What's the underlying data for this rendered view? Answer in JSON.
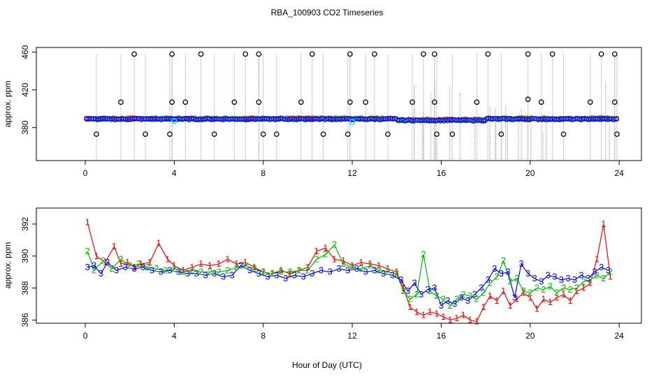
{
  "title": "RBA_100903  CO2 Timeseries",
  "xlabel": "Hour of Day (UTC)",
  "colors": {
    "s1": "#ff0000",
    "s2": "#00bb00",
    "s3": "#0000ff",
    "spike": "#000000",
    "cyan": "#00e5ee",
    "grid": "#999999"
  },
  "chart_data": [
    {
      "type": "scatter",
      "name": "raw-timeseries",
      "ylabel": "approx. ppm",
      "xlim": [
        -2.2,
        25
      ],
      "ylim": [
        345,
        465
      ],
      "xticks": [
        0,
        4,
        8,
        12,
        16,
        20,
        24
      ],
      "yticks": [
        380,
        420,
        460
      ],
      "baseline_ppm": 389,
      "spike_high_ppm": 458,
      "spike_mid_ppm": 407,
      "spike_low_ppm": 373,
      "spikes_high_hours": [
        2.2,
        3.9,
        5.2,
        7.2,
        7.8,
        10.2,
        11.9,
        13.0,
        15.2,
        15.7,
        18.1,
        19.9,
        21.0,
        23.2,
        23.8
      ],
      "spikes_mid_hours": [
        1.6,
        3.9,
        4.5,
        6.7,
        7.8,
        9.7,
        11.9,
        12.6,
        14.7,
        15.7,
        17.6,
        20.5,
        22.7,
        23.8
      ],
      "spikes_low_hours": [
        0.5,
        2.7,
        3.8,
        5.8,
        8.0,
        8.6,
        10.7,
        11.8,
        13.6,
        15.8,
        16.5,
        18.7,
        21.5,
        23.9
      ],
      "cyan_points": [
        {
          "x": 4.0,
          "y": 387
        },
        {
          "x": 12.0,
          "y": 386
        }
      ]
    },
    {
      "type": "line",
      "name": "smoothed-timeseries",
      "ylabel": "approx. ppm",
      "xlim": [
        -2.2,
        25
      ],
      "ylim": [
        385.8,
        393.0
      ],
      "xticks": [
        0,
        4,
        8,
        12,
        16,
        20,
        24
      ],
      "yticks": [
        386,
        388,
        390,
        392
      ],
      "series": [
        {
          "name": "1",
          "x": [
            0.1,
            0.5,
            0.9,
            1.3,
            1.6,
            1.9,
            2.2,
            2.5,
            2.9,
            3.3,
            3.7,
            4.0,
            4.4,
            4.8,
            5.2,
            5.6,
            6.0,
            6.4,
            6.8,
            7.2,
            7.6,
            8.0,
            8.4,
            8.8,
            9.2,
            9.6,
            10.0,
            10.4,
            10.8,
            11.2,
            11.6,
            12.0,
            12.4,
            12.8,
            13.2,
            13.6,
            14.0,
            14.3,
            14.6,
            14.9,
            15.2,
            15.5,
            15.8,
            16.1,
            16.4,
            16.7,
            17.0,
            17.3,
            17.6,
            17.9,
            18.2,
            18.5,
            18.8,
            19.1,
            19.4,
            19.7,
            20.0,
            20.3,
            20.6,
            20.9,
            21.2,
            21.5,
            21.8,
            22.1,
            22.4,
            22.7,
            23.0,
            23.3,
            23.6
          ],
          "y": [
            392.1,
            390.0,
            389.6,
            390.6,
            389.5,
            389.6,
            389.3,
            389.5,
            389.6,
            390.8,
            389.8,
            389.4,
            389.1,
            389.3,
            389.5,
            389.4,
            389.5,
            389.8,
            389.5,
            389.6,
            389.3,
            389.0,
            388.9,
            389.1,
            388.9,
            389.1,
            389.3,
            390.3,
            390.5,
            389.8,
            389.7,
            389.4,
            389.6,
            389.5,
            389.4,
            389.2,
            389.0,
            388.0,
            386.8,
            386.5,
            386.3,
            386.5,
            386.4,
            386.2,
            386.0,
            386.1,
            386.3,
            386.0,
            385.9,
            386.8,
            387.5,
            387.2,
            387.8,
            386.9,
            387.3,
            387.7,
            387.4,
            386.7,
            387.3,
            387.1,
            387.4,
            387.6,
            387.2,
            387.8,
            388.0,
            388.3,
            389.8,
            392.0,
            388.7
          ]
        },
        {
          "name": "2",
          "x": [
            0.1,
            0.4,
            0.8,
            1.2,
            1.6,
            2.0,
            2.4,
            2.8,
            3.2,
            3.6,
            4.0,
            4.4,
            4.8,
            5.2,
            5.6,
            6.0,
            6.4,
            6.8,
            7.2,
            7.6,
            8.0,
            8.4,
            8.8,
            9.2,
            9.6,
            10.0,
            10.4,
            10.8,
            11.2,
            11.6,
            12.0,
            12.4,
            12.8,
            13.2,
            13.6,
            14.0,
            14.3,
            14.6,
            14.9,
            15.2,
            15.5,
            15.8,
            16.1,
            16.4,
            16.7,
            17.0,
            17.3,
            17.6,
            17.9,
            18.2,
            18.5,
            18.8,
            19.1,
            19.4,
            19.7,
            20.0,
            20.3,
            20.6,
            20.9,
            21.2,
            21.5,
            21.8,
            22.1,
            22.4,
            22.7,
            23.0,
            23.3,
            23.6
          ],
          "y": [
            390.3,
            389.1,
            389.7,
            389.2,
            389.8,
            389.4,
            389.5,
            389.3,
            389.2,
            389.1,
            389.2,
            389.0,
            389.1,
            389.0,
            389.0,
            389.0,
            389.1,
            389.3,
            389.4,
            389.2,
            389.0,
            388.9,
            389.0,
            389.0,
            389.1,
            389.1,
            389.8,
            390.1,
            390.7,
            389.5,
            389.3,
            389.2,
            389.4,
            389.1,
            389.0,
            388.9,
            387.8,
            387.3,
            387.6,
            390.1,
            387.8,
            387.5,
            387.3,
            386.9,
            387.3,
            387.6,
            387.5,
            387.3,
            387.7,
            388.3,
            388.7,
            389.7,
            388.4,
            388.6,
            387.8,
            387.7,
            388.0,
            387.9,
            388.1,
            387.7,
            388.0,
            387.9,
            388.0,
            388.4,
            388.5,
            388.8,
            388.6,
            389.0
          ]
        },
        {
          "name": "3",
          "x": [
            0.1,
            0.4,
            0.7,
            1.0,
            1.4,
            1.8,
            2.2,
            2.6,
            3.0,
            3.4,
            3.8,
            4.2,
            4.6,
            5.0,
            5.4,
            5.8,
            6.2,
            6.6,
            7.0,
            7.4,
            7.8,
            8.2,
            8.6,
            9.0,
            9.4,
            9.8,
            10.2,
            10.6,
            11.0,
            11.4,
            11.8,
            12.2,
            12.6,
            13.0,
            13.4,
            13.8,
            14.2,
            14.5,
            14.8,
            15.1,
            15.4,
            15.7,
            16.0,
            16.3,
            16.6,
            16.9,
            17.2,
            17.5,
            17.8,
            18.1,
            18.4,
            18.7,
            19.0,
            19.3,
            19.6,
            19.9,
            20.2,
            20.5,
            20.8,
            21.1,
            21.4,
            21.7,
            22.0,
            22.3,
            22.6,
            22.9,
            23.2,
            23.5
          ],
          "y": [
            389.3,
            389.4,
            388.9,
            389.6,
            389.1,
            389.3,
            389.2,
            389.3,
            389.1,
            389.0,
            389.1,
            389.0,
            388.9,
            388.9,
            388.8,
            388.9,
            388.7,
            388.8,
            389.4,
            389.1,
            388.9,
            388.7,
            388.8,
            388.6,
            388.8,
            388.7,
            388.9,
            389.1,
            389.0,
            389.2,
            389.1,
            389.2,
            389.0,
            389.1,
            388.9,
            388.8,
            388.5,
            387.8,
            388.3,
            387.6,
            387.9,
            388.0,
            386.9,
            387.2,
            387.0,
            387.4,
            387.2,
            387.6,
            388.0,
            388.5,
            389.2,
            388.9,
            389.0,
            387.4,
            389.5,
            388.9,
            388.6,
            388.4,
            388.8,
            388.7,
            388.5,
            388.6,
            388.5,
            388.8,
            388.6,
            389.0,
            389.3,
            389.1
          ]
        }
      ]
    }
  ]
}
